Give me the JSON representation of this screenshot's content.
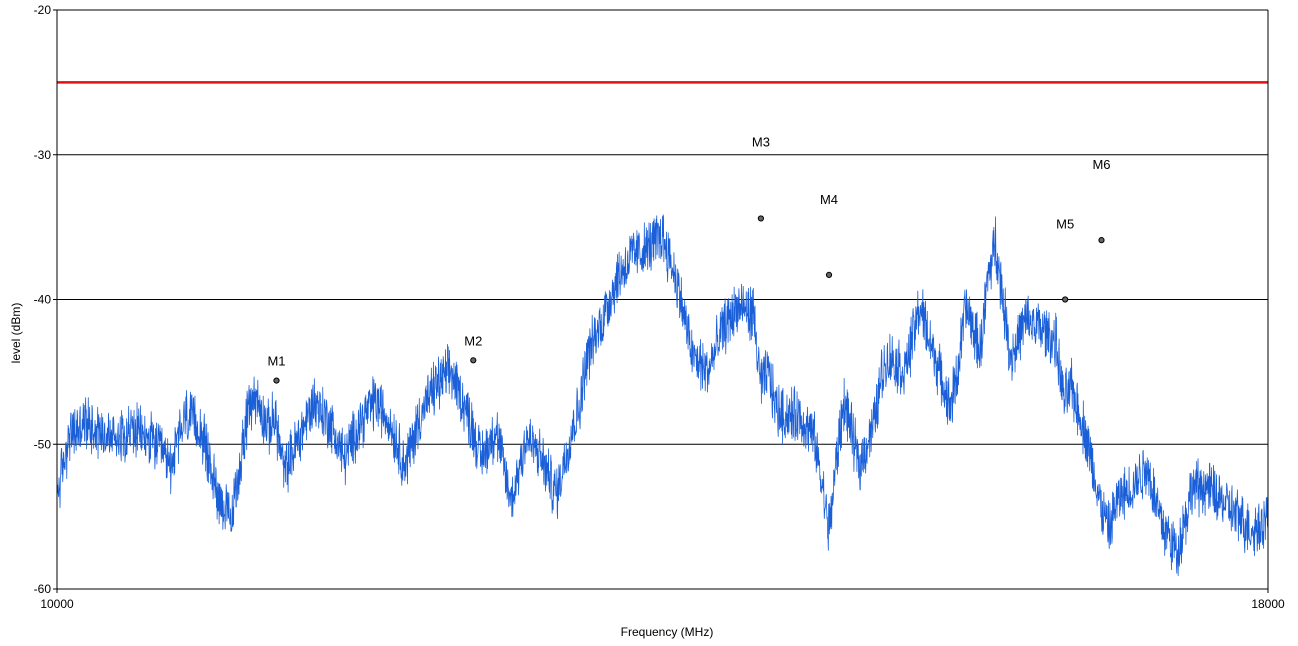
{
  "chart_data": {
    "type": "line",
    "xlabel": "Frequency (MHz)",
    "ylabel": "level (dBm)",
    "xlim": [
      10000,
      18000
    ],
    "ylim": [
      -60,
      -20
    ],
    "x_ticks": [
      10000,
      18000
    ],
    "y_ticks": [
      -20,
      -30,
      -40,
      -50,
      -60
    ],
    "grid_y": [
      -30,
      -40,
      -50
    ],
    "limit_line": {
      "value": -25,
      "color": "#e01010"
    },
    "series": [
      {
        "color": "#1a5fd8",
        "x": [
          10000,
          10080,
          10200,
          10350,
          10500,
          10650,
          10750,
          10850,
          10950,
          11050,
          11150,
          11250,
          11300,
          11400,
          11440,
          11500,
          11600,
          11700,
          11800,
          11900,
          12000,
          12100,
          12200,
          12300,
          12400,
          12500,
          12600,
          12700,
          12750,
          12800,
          12900,
          13000,
          13100,
          13200,
          13300,
          13400,
          13450,
          13500,
          13600,
          13700,
          13800,
          13900,
          14000,
          14100,
          14200,
          14300,
          14400,
          14500,
          14600,
          14650,
          14700,
          14750,
          14800,
          14900,
          15000,
          15050,
          15100,
          15150,
          15200,
          15300,
          15400,
          15450,
          15500,
          15600,
          15700,
          15800,
          15900,
          15950,
          16000,
          16100,
          16150,
          16200,
          16300,
          16400,
          16500,
          16600,
          16650,
          16700,
          16800,
          16900,
          16950,
          17000,
          17100,
          17200,
          17300,
          17400,
          17500,
          17600,
          17700,
          17800,
          17900,
          18000
        ],
        "values": [
          -53.5,
          -49.5,
          -48.5,
          -49.5,
          -49,
          -50,
          -51.5,
          -48,
          -49,
          -53,
          -55.5,
          -48.5,
          -46.5,
          -49,
          -48,
          -52,
          -49.5,
          -47,
          -48.5,
          -51,
          -48.5,
          -47,
          -48.5,
          -51.5,
          -48,
          -46,
          -45,
          -47.5,
          -49,
          -51,
          -49,
          -54,
          -49.5,
          -51,
          -53.5,
          -49,
          -47.5,
          -44,
          -41.5,
          -38.5,
          -37,
          -36.5,
          -35.5,
          -39,
          -44,
          -45,
          -42,
          -40.5,
          -41,
          -46,
          -45,
          -47.5,
          -48,
          -48,
          -49.5,
          -52.5,
          -56,
          -51,
          -47,
          -51.5,
          -48.5,
          -45,
          -44,
          -45,
          -40.5,
          -44,
          -47.5,
          -45,
          -40.5,
          -43.5,
          -38.5,
          -36,
          -44,
          -41.5,
          -42,
          -43,
          -47,
          -46,
          -49.5,
          -54.5,
          -56,
          -54,
          -53,
          -51.5,
          -55.5,
          -57.5,
          -53,
          -53,
          -54,
          -55,
          -56,
          -55
        ]
      }
    ],
    "markers": [
      {
        "label": "M1",
        "x": 11450,
        "y": -45.6
      },
      {
        "label": "M2",
        "x": 12750,
        "y": -44.2
      },
      {
        "label": "M3",
        "x": 14650,
        "y": -34.4
      },
      {
        "label": "M4",
        "x": 15100,
        "y": -38.3
      },
      {
        "label": "M5",
        "x": 16660,
        "y": -40
      },
      {
        "label": "M6",
        "x": 16900,
        "y": -35.9
      }
    ]
  }
}
